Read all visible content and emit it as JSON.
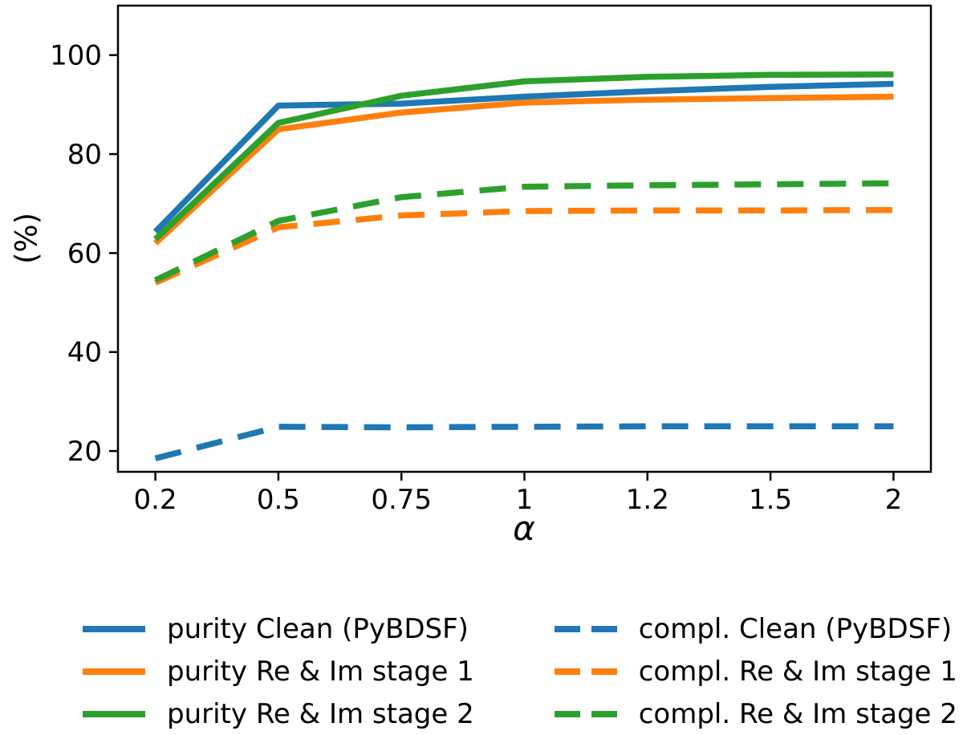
{
  "figure": {
    "background": "#ffffff",
    "text_color": "#000000"
  },
  "chart_data": {
    "type": "line",
    "title": "",
    "xlabel": "α",
    "ylabel": "(%)",
    "x_mode": "categorical",
    "categories": [
      0.2,
      0.5,
      0.75,
      1,
      1.2,
      1.5,
      2
    ],
    "x_ticklabels": [
      "0.2",
      "0.5",
      "0.75",
      "1",
      "1.2",
      "1.5",
      "2"
    ],
    "y_ticks": [
      20,
      40,
      60,
      80,
      100
    ],
    "ylim": [
      15.8,
      110
    ],
    "grid": false,
    "legend_position": "below-two-columns",
    "series": [
      {
        "name": "purity Clean (PyBDSF)",
        "style": "solid",
        "color": "#1f77b4",
        "values": [
          64.3,
          89.8,
          90.2,
          91.6,
          92.7,
          93.6,
          94.2
        ]
      },
      {
        "name": "purity Re & Im stage 1",
        "style": "solid",
        "color": "#ff7f0e",
        "values": [
          62.0,
          85.0,
          88.4,
          90.4,
          91.0,
          91.3,
          91.6
        ]
      },
      {
        "name": "purity Re & Im stage 2",
        "style": "solid",
        "color": "#2ca02c",
        "values": [
          62.8,
          86.3,
          91.8,
          94.7,
          95.6,
          96.0,
          96.1
        ]
      },
      {
        "name": "compl. Clean (PyBDSF)",
        "style": "dashed",
        "color": "#1f77b4",
        "values": [
          18.5,
          24.9,
          24.8,
          24.9,
          25.0,
          25.0,
          25.0
        ]
      },
      {
        "name": "compl. Re & Im stage 1",
        "style": "dashed",
        "color": "#ff7f0e",
        "values": [
          54.0,
          65.2,
          67.6,
          68.5,
          68.6,
          68.6,
          68.7
        ]
      },
      {
        "name": "compl. Re & Im stage 2",
        "style": "dashed",
        "color": "#2ca02c",
        "values": [
          54.5,
          66.5,
          71.3,
          73.4,
          73.7,
          73.9,
          74.1
        ]
      }
    ]
  }
}
